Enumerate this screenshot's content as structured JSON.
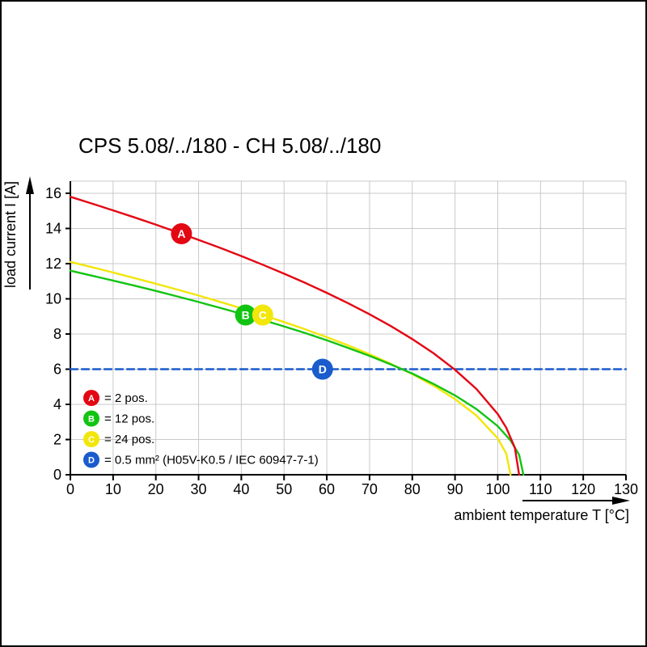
{
  "chart_data": {
    "type": "line",
    "title": "CPS 5.08/../180 - CH 5.08/../180",
    "xlabel": "ambient temperature T [°C]",
    "ylabel": "load current I [A]",
    "xlim": [
      0,
      130
    ],
    "ylim": [
      0,
      16
    ],
    "xticks": [
      0,
      10,
      20,
      30,
      40,
      50,
      60,
      70,
      80,
      90,
      100,
      110,
      120,
      130
    ],
    "yticks": [
      0,
      2,
      4,
      6,
      8,
      10,
      12,
      14,
      16
    ],
    "grid": true,
    "legend_position": "lower left",
    "colors": {
      "grid": "#c9c9c9",
      "axis": "#000000",
      "background": "#ffffff"
    },
    "series": [
      {
        "id": "A",
        "name": "2 pos.",
        "color": "#e30613",
        "style": "solid",
        "x": [
          0,
          5,
          10,
          15,
          20,
          25,
          30,
          35,
          40,
          45,
          50,
          55,
          60,
          65,
          70,
          75,
          80,
          85,
          90,
          95,
          100,
          102,
          104,
          105
        ],
        "y": [
          15.8,
          15.42,
          15.03,
          14.63,
          14.22,
          13.79,
          13.35,
          12.9,
          12.43,
          11.94,
          11.43,
          10.9,
          10.34,
          9.75,
          9.12,
          8.45,
          7.71,
          6.9,
          5.97,
          4.88,
          3.45,
          2.67,
          1.54,
          0
        ],
        "marker": {
          "t": 26,
          "i": 13.7
        }
      },
      {
        "id": "B",
        "name": "12 pos.",
        "color": "#12c412",
        "style": "solid",
        "x": [
          0,
          5,
          10,
          15,
          20,
          25,
          30,
          35,
          40,
          45,
          50,
          55,
          60,
          65,
          70,
          75,
          80,
          85,
          90,
          95,
          100,
          103,
          105,
          106
        ],
        "y": [
          11.6,
          11.32,
          11.04,
          10.75,
          10.45,
          10.14,
          9.82,
          9.49,
          9.15,
          8.8,
          8.43,
          8.05,
          7.64,
          7.21,
          6.76,
          6.27,
          5.75,
          5.16,
          4.51,
          3.74,
          2.76,
          1.95,
          1.13,
          0
        ],
        "marker": {
          "t": 41,
          "i": 9.08
        }
      },
      {
        "id": "C",
        "name": "24 pos.",
        "color": "#f2e60a",
        "style": "solid",
        "x": [
          0,
          5,
          10,
          15,
          20,
          25,
          30,
          35,
          40,
          45,
          50,
          55,
          60,
          65,
          70,
          75,
          80,
          85,
          90,
          95,
          100,
          102,
          103
        ],
        "y": [
          12.1,
          11.8,
          11.5,
          11.18,
          10.86,
          10.53,
          10.19,
          9.83,
          9.46,
          9.08,
          8.68,
          8.26,
          7.82,
          7.35,
          6.85,
          6.31,
          5.72,
          5.06,
          4.3,
          3.37,
          2.07,
          1.19,
          0
        ],
        "marker": {
          "t": 45,
          "i": 9.08
        }
      },
      {
        "id": "D",
        "name": "0.5 mm² (H05V-K0.5 / IEC 60947-7-1)",
        "color": "#1a5ccc",
        "style": "dashed",
        "x": [
          0,
          130
        ],
        "y": [
          6,
          6
        ],
        "marker": {
          "t": 59,
          "i": 6
        }
      }
    ],
    "legend": [
      {
        "id": "A",
        "label": "= 2 pos.",
        "color": "#e30613"
      },
      {
        "id": "B",
        "label": "= 12 pos.",
        "color": "#12c412"
      },
      {
        "id": "C",
        "label": "= 24 pos.",
        "color": "#f2e60a"
      },
      {
        "id": "D",
        "label": "= 0.5 mm² (H05V-K0.5 / IEC 60947-7-1)",
        "color": "#1a5ccc"
      }
    ]
  }
}
